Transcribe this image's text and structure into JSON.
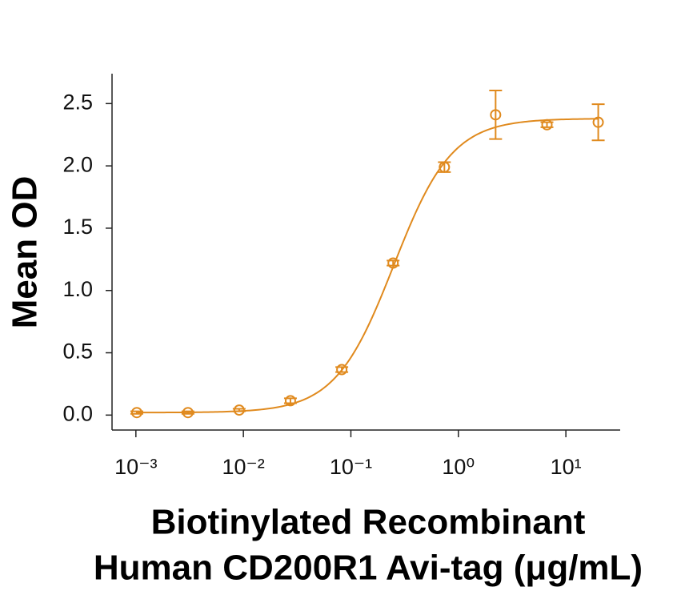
{
  "chart_data": {
    "type": "scatter",
    "x_label_lines": [
      "Biotinylated Recombinant",
      "Human CD200R1 Avi-tag (μg/mL)"
    ],
    "y_label": "Mean OD",
    "x_log": true,
    "color": "#e08a1e",
    "x": [
      0.00102,
      0.00305,
      0.00914,
      0.0274,
      0.0823,
      0.247,
      0.741,
      2.22,
      6.67,
      20
    ],
    "values": [
      0.02,
      0.02,
      0.04,
      0.115,
      0.365,
      1.22,
      1.99,
      2.41,
      2.33,
      2.35
    ],
    "errors": [
      0.01,
      0.01,
      0.01,
      0.02,
      0.02,
      0.02,
      0.04,
      0.195,
      0.02,
      0.145
    ],
    "fit": {
      "bottom": 0.02,
      "top": 2.38,
      "ec50": 0.25,
      "hill": 1.6
    },
    "xlim": [
      0.0006,
      32
    ],
    "ylim": [
      -0.12,
      2.74
    ],
    "xticks": [
      {
        "value": 0.001,
        "label": "10⁻³"
      },
      {
        "value": 0.01,
        "label": "10⁻²"
      },
      {
        "value": 0.1,
        "label": "10⁻¹"
      },
      {
        "value": 1,
        "label": "10⁰"
      },
      {
        "value": 10,
        "label": "10¹"
      }
    ],
    "yticks": [
      {
        "value": 0,
        "label": "0.0"
      },
      0.5,
      {
        "value": 1,
        "label": "1.0"
      },
      1.5,
      {
        "value": 2,
        "label": "2.0"
      },
      2.5
    ]
  }
}
